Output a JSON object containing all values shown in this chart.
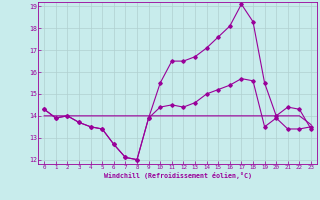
{
  "xlabel": "Windchill (Refroidissement éolien,°C)",
  "background_color": "#c8ecec",
  "line_color": "#990099",
  "grid_color": "#b0d0d0",
  "hours": [
    0,
    1,
    2,
    3,
    4,
    5,
    6,
    7,
    8,
    9,
    10,
    11,
    12,
    13,
    14,
    15,
    16,
    17,
    18,
    19,
    20,
    21,
    22,
    23
  ],
  "temp": [
    14.3,
    13.9,
    14.0,
    13.7,
    13.5,
    13.4,
    12.7,
    12.1,
    12.0,
    13.9,
    15.5,
    16.5,
    16.5,
    16.7,
    17.1,
    17.6,
    18.1,
    19.1,
    18.3,
    15.5,
    14.0,
    14.4,
    14.3,
    13.4
  ],
  "windchill": [
    14.3,
    13.9,
    14.0,
    13.7,
    13.5,
    13.4,
    12.7,
    12.1,
    12.0,
    13.9,
    14.4,
    14.5,
    14.4,
    14.6,
    15.0,
    15.2,
    15.4,
    15.7,
    15.6,
    13.5,
    13.9,
    13.4,
    13.4,
    13.5
  ],
  "flat_line": [
    14.0,
    14.0,
    14.0,
    14.0,
    14.0,
    14.0,
    14.0,
    14.0,
    14.0,
    14.0,
    14.0,
    14.0,
    14.0,
    14.0,
    14.0,
    14.0,
    14.0,
    14.0,
    14.0,
    14.0,
    14.0,
    14.0,
    14.0,
    13.6
  ],
  "ylim": [
    11.8,
    19.2
  ],
  "xlim": [
    -0.5,
    23.5
  ],
  "yticks": [
    12,
    13,
    14,
    15,
    16,
    17,
    18,
    19
  ],
  "xticks": [
    0,
    1,
    2,
    3,
    4,
    5,
    6,
    7,
    8,
    9,
    10,
    11,
    12,
    13,
    14,
    15,
    16,
    17,
    18,
    19,
    20,
    21,
    22,
    23
  ]
}
